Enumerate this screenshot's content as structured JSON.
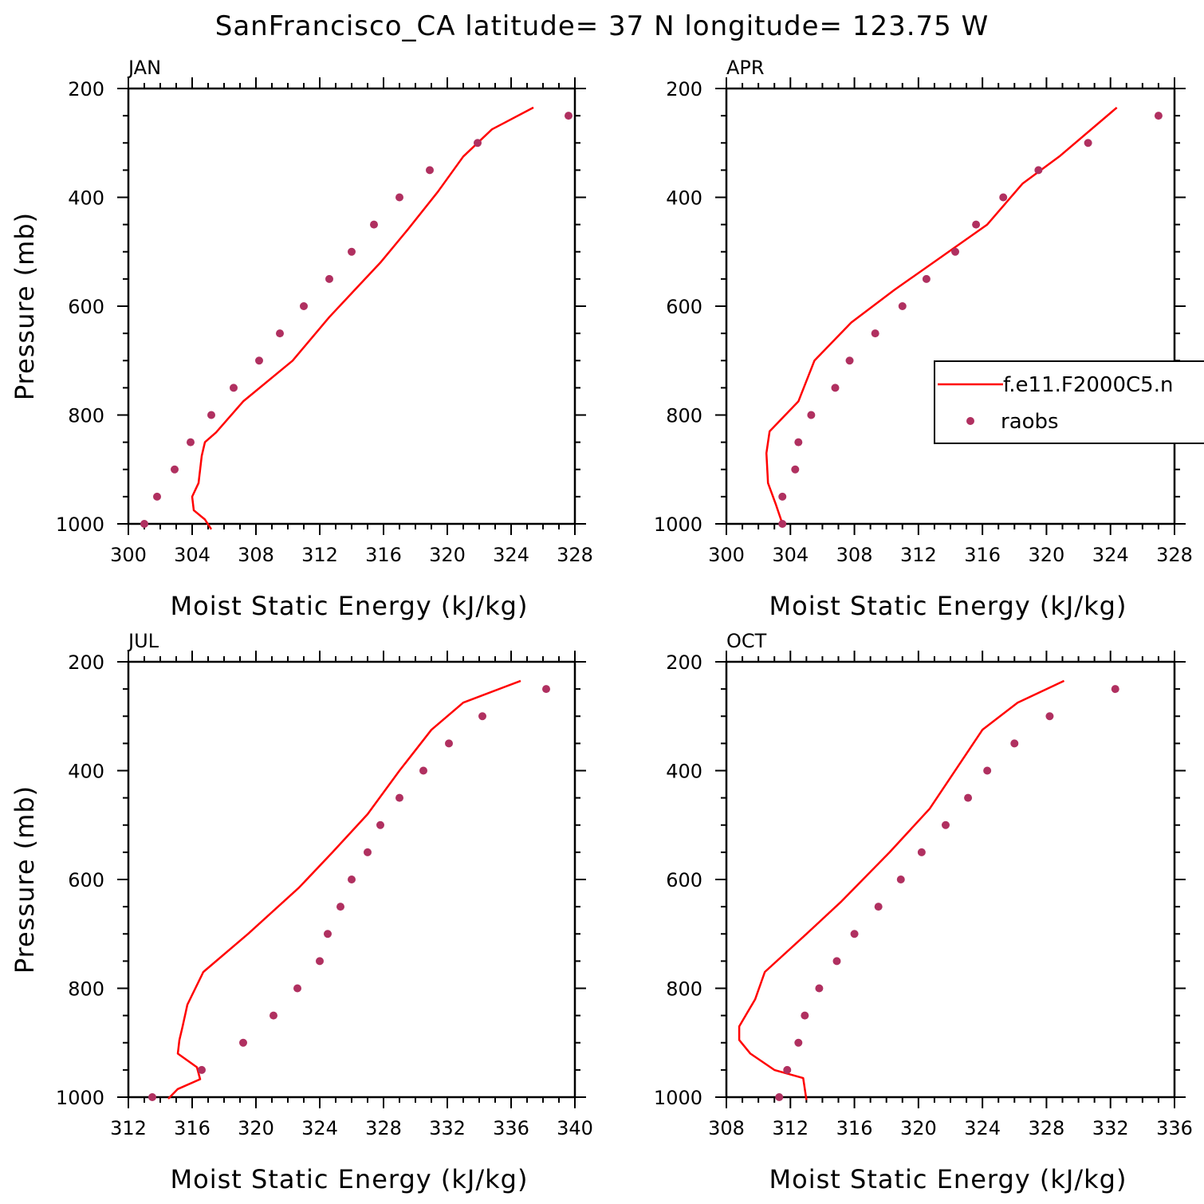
{
  "figure": {
    "title": "SanFrancisco_CA  latitude= 37 N longitude= 123.75 W"
  },
  "colors": {
    "model_line": "#ff0000",
    "obs_marker": "#b03060",
    "axes": "#000000",
    "background": "#ffffff"
  },
  "legend": {
    "placement": "right of APR panel",
    "entries": [
      {
        "label": "f.e11.F2000C5.n",
        "style": "line",
        "color": "#ff0000"
      },
      {
        "label": "raobs",
        "style": "marker",
        "color": "#b03060"
      }
    ]
  },
  "chart_data": [
    {
      "type": "line",
      "panel": "JAN",
      "xlabel": "Moist Static Energy (kJ/kg)",
      "ylabel": "Pressure (mb)",
      "xlim": [
        300,
        328
      ],
      "xticks": [
        300,
        304,
        308,
        312,
        316,
        320,
        324,
        328
      ],
      "ylim": [
        1000,
        200
      ],
      "yticks": [
        200,
        400,
        600,
        800,
        1000
      ],
      "series": [
        {
          "name": "f.e11.F2000C5.n",
          "style": "line",
          "x": [
            305.2,
            304.8,
            304.1,
            304.0,
            304.4,
            304.5,
            304.6,
            304.8,
            305.5,
            307.2,
            310.3,
            312.6,
            314.2,
            315.8,
            317.5,
            319.4,
            321.0,
            322.8,
            325.4
          ],
          "y": [
            1010,
            992,
            975,
            950,
            925,
            900,
            875,
            850,
            832,
            775,
            700,
            620,
            570,
            520,
            460,
            390,
            325,
            275,
            235
          ]
        },
        {
          "name": "raobs",
          "style": "scatter",
          "x": [
            301.0,
            301.8,
            302.9,
            303.9,
            305.2,
            306.6,
            308.2,
            309.5,
            311.0,
            312.6,
            314.0,
            315.4,
            317.0,
            318.9,
            321.9,
            327.6
          ],
          "y": [
            1000,
            950,
            900,
            850,
            800,
            750,
            700,
            650,
            600,
            550,
            500,
            450,
            400,
            350,
            300,
            250
          ]
        }
      ]
    },
    {
      "type": "line",
      "panel": "APR",
      "xlabel": "Moist Static Energy (kJ/kg)",
      "ylabel": "",
      "xlim": [
        300,
        328
      ],
      "xticks": [
        300,
        304,
        308,
        312,
        316,
        320,
        324,
        328
      ],
      "ylim": [
        1000,
        200
      ],
      "yticks": [
        200,
        400,
        600,
        800,
        1000
      ],
      "series": [
        {
          "name": "f.e11.F2000C5.n",
          "style": "line",
          "x": [
            303.5,
            303.1,
            302.6,
            302.5,
            302.6,
            302.7,
            304.5,
            305.5,
            307.8,
            310.5,
            313.4,
            316.3,
            318.5,
            320.8,
            324.4
          ],
          "y": [
            1000,
            965,
            925,
            870,
            850,
            830,
            775,
            700,
            630,
            570,
            510,
            450,
            375,
            325,
            235
          ]
        },
        {
          "name": "raobs",
          "style": "scatter",
          "x": [
            303.5,
            303.5,
            304.3,
            304.5,
            305.3,
            306.8,
            307.7,
            309.3,
            311.0,
            312.5,
            314.3,
            315.6,
            317.3,
            319.5,
            322.6,
            327.0
          ],
          "y": [
            1000,
            950,
            900,
            850,
            800,
            750,
            700,
            650,
            600,
            550,
            500,
            450,
            400,
            350,
            300,
            250
          ]
        }
      ]
    },
    {
      "type": "line",
      "panel": "JUL",
      "xlabel": "Moist Static Energy (kJ/kg)",
      "ylabel": "Pressure (mb)",
      "xlim": [
        312,
        340
      ],
      "xticks": [
        312,
        316,
        320,
        324,
        328,
        332,
        336,
        340
      ],
      "ylim": [
        1000,
        200
      ],
      "yticks": [
        200,
        400,
        600,
        800,
        1000
      ],
      "series": [
        {
          "name": "f.e11.F2000C5.n",
          "style": "line",
          "x": [
            314.5,
            315.1,
            316.5,
            316.3,
            315.1,
            315.2,
            315.4,
            315.7,
            316.7,
            319.5,
            322.7,
            324.8,
            327.0,
            329.0,
            331.0,
            333.0,
            336.6
          ],
          "y": [
            1003,
            985,
            967,
            945,
            920,
            895,
            870,
            830,
            770,
            700,
            615,
            550,
            480,
            400,
            325,
            275,
            235
          ]
        },
        {
          "name": "raobs",
          "style": "scatter",
          "x": [
            313.5,
            316.6,
            319.2,
            321.1,
            322.6,
            324.0,
            324.5,
            325.3,
            326.0,
            327.0,
            327.8,
            329.0,
            330.5,
            332.1,
            334.2,
            338.2
          ],
          "y": [
            1000,
            950,
            900,
            850,
            800,
            750,
            700,
            650,
            600,
            550,
            500,
            450,
            400,
            350,
            300,
            250
          ]
        }
      ]
    },
    {
      "type": "line",
      "panel": "OCT",
      "xlabel": "Moist Static Energy (kJ/kg)",
      "ylabel": "",
      "xlim": [
        308,
        336
      ],
      "xticks": [
        308,
        312,
        316,
        320,
        324,
        328,
        332,
        336
      ],
      "ylim": [
        1000,
        200
      ],
      "yticks": [
        200,
        400,
        600,
        800,
        1000
      ],
      "series": [
        {
          "name": "f.e11.F2000C5.n",
          "style": "line",
          "x": [
            313.0,
            312.8,
            311.0,
            309.5,
            308.8,
            308.8,
            309.2,
            309.8,
            310.4,
            313.0,
            315.2,
            318.2,
            320.7,
            324.0,
            326.2,
            329.1
          ],
          "y": [
            1005,
            965,
            950,
            920,
            895,
            870,
            850,
            820,
            770,
            700,
            640,
            550,
            470,
            325,
            275,
            235
          ]
        },
        {
          "name": "raobs",
          "style": "scatter",
          "x": [
            311.3,
            311.8,
            312.5,
            312.9,
            313.8,
            314.9,
            316.0,
            317.5,
            318.9,
            320.2,
            321.7,
            323.1,
            324.3,
            326.0,
            328.2,
            332.3
          ],
          "y": [
            1000,
            950,
            900,
            850,
            800,
            750,
            700,
            650,
            600,
            550,
            500,
            450,
            400,
            350,
            300,
            250
          ]
        }
      ]
    }
  ]
}
